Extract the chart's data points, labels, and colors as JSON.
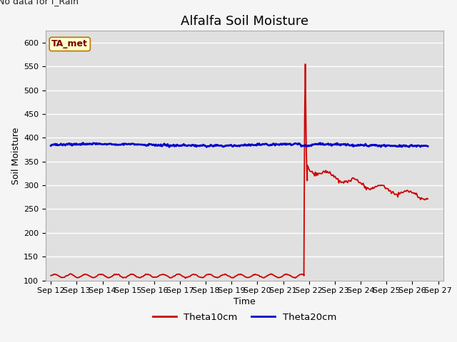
{
  "title": "Alfalfa Soil Moisture",
  "xlabel": "Time",
  "ylabel": "Soil Moisture",
  "top_left_note": "No data for f_Rain",
  "box_label": "TA_met",
  "ylim": [
    100,
    625
  ],
  "yticks": [
    100,
    150,
    200,
    250,
    300,
    350,
    400,
    450,
    500,
    550,
    600
  ],
  "xtick_labels": [
    "Sep 12",
    "Sep 13",
    "Sep 14",
    "Sep 15",
    "Sep 16",
    "Sep 17",
    "Sep 18",
    "Sep 19",
    "Sep 20",
    "Sep 21",
    "Sep 22",
    "Sep 23",
    "Sep 24",
    "Sep 25",
    "Sep 26",
    "Sep 27"
  ],
  "theta10_color": "#cc0000",
  "theta20_color": "#0000cc",
  "plot_bg_color": "#e0e0e0",
  "fig_bg_color": "#f5f5f5",
  "legend_entries": [
    "Theta10cm",
    "Theta20cm"
  ],
  "title_fontsize": 13,
  "axis_label_fontsize": 9,
  "tick_fontsize": 8
}
